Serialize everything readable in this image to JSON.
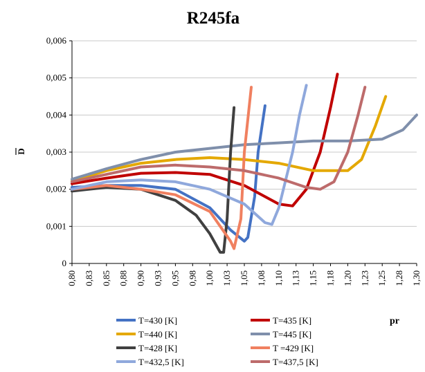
{
  "chart_data": {
    "type": "line",
    "title": "R245fa",
    "xlabel": "pr",
    "ylabel": "D",
    "xlim": [
      0.8,
      1.3
    ],
    "ylim": [
      0,
      0.006
    ],
    "grid": true,
    "legend_position": "bottom",
    "y_ticks": [
      "0",
      "0,001",
      "0,002",
      "0,003",
      "0,004",
      "0,005",
      "0,006"
    ],
    "x_ticks": [
      "0,80",
      "0,83",
      "0,85",
      "0,88",
      "0,90",
      "0,93",
      "0,95",
      "0,98",
      "1,00",
      "1,03",
      "1,05",
      "1,08",
      "1,10",
      "1,13",
      "1,15",
      "1,18",
      "1,20",
      "1,23",
      "1,25",
      "1,28",
      "1,30"
    ],
    "series": [
      {
        "name": "T=430 [K]",
        "color": "#4472c4",
        "x": [
          0.8,
          0.85,
          0.9,
          0.95,
          1.0,
          1.03,
          1.05,
          1.055,
          1.065,
          1.07,
          1.08
        ],
        "y": [
          0.00205,
          0.0021,
          0.0021,
          0.002,
          0.0015,
          0.0009,
          0.0006,
          0.0007,
          0.0018,
          0.003,
          0.00425
        ]
      },
      {
        "name": "T=435 [K]",
        "color": "#c00000",
        "x": [
          0.8,
          0.85,
          0.9,
          0.95,
          1.0,
          1.05,
          1.08,
          1.1,
          1.12,
          1.14,
          1.16,
          1.175,
          1.185
        ],
        "y": [
          0.00215,
          0.0023,
          0.00243,
          0.00245,
          0.0024,
          0.0021,
          0.0018,
          0.0016,
          0.00155,
          0.002,
          0.003,
          0.0042,
          0.0051
        ]
      },
      {
        "name": "T=440 [K]",
        "color": "#e4a800",
        "x": [
          0.8,
          0.85,
          0.9,
          0.95,
          1.0,
          1.05,
          1.1,
          1.15,
          1.2,
          1.22,
          1.24,
          1.255
        ],
        "y": [
          0.00222,
          0.0025,
          0.0027,
          0.0028,
          0.00285,
          0.0028,
          0.0027,
          0.0025,
          0.0025,
          0.0028,
          0.0037,
          0.0045
        ]
      },
      {
        "name": "T=445 [K]",
        "color": "#7f8fab",
        "x": [
          0.8,
          0.85,
          0.9,
          0.95,
          1.0,
          1.05,
          1.1,
          1.15,
          1.2,
          1.25,
          1.28,
          1.3
        ],
        "y": [
          0.00227,
          0.00255,
          0.0028,
          0.003,
          0.0031,
          0.0032,
          0.00325,
          0.0033,
          0.0033,
          0.00335,
          0.0036,
          0.004
        ]
      },
      {
        "name": "T=428 [K]",
        "color": "#404040",
        "x": [
          0.8,
          0.85,
          0.9,
          0.95,
          0.98,
          1.0,
          1.015,
          1.02,
          1.025,
          1.03,
          1.035
        ],
        "y": [
          0.00195,
          0.00205,
          0.002,
          0.0017,
          0.0013,
          0.0008,
          0.0003,
          0.0003,
          0.0012,
          0.003,
          0.0042
        ]
      },
      {
        "name": "T =429 [K]",
        "color": "#f08060",
        "x": [
          0.8,
          0.85,
          0.9,
          0.95,
          1.0,
          1.03,
          1.035,
          1.045,
          1.05,
          1.06
        ],
        "y": [
          0.002,
          0.0021,
          0.002,
          0.00185,
          0.0014,
          0.0006,
          0.0004,
          0.0012,
          0.003,
          0.00475
        ]
      },
      {
        "name": "T=432,5 [K]",
        "color": "#8fa8dc",
        "x": [
          0.8,
          0.85,
          0.9,
          0.95,
          1.0,
          1.05,
          1.08,
          1.09,
          1.1,
          1.12,
          1.13,
          1.14
        ],
        "y": [
          0.002,
          0.0022,
          0.00225,
          0.0022,
          0.002,
          0.0016,
          0.0011,
          0.00105,
          0.0015,
          0.003,
          0.004,
          0.0048
        ]
      },
      {
        "name": "T=437,5 [K]",
        "color": "#bd6b6b",
        "x": [
          0.8,
          0.85,
          0.9,
          0.95,
          1.0,
          1.05,
          1.1,
          1.14,
          1.16,
          1.18,
          1.2,
          1.215,
          1.225
        ],
        "y": [
          0.0022,
          0.0024,
          0.0026,
          0.00265,
          0.0026,
          0.0025,
          0.0023,
          0.00205,
          0.002,
          0.0022,
          0.003,
          0.004,
          0.00475
        ]
      }
    ]
  }
}
